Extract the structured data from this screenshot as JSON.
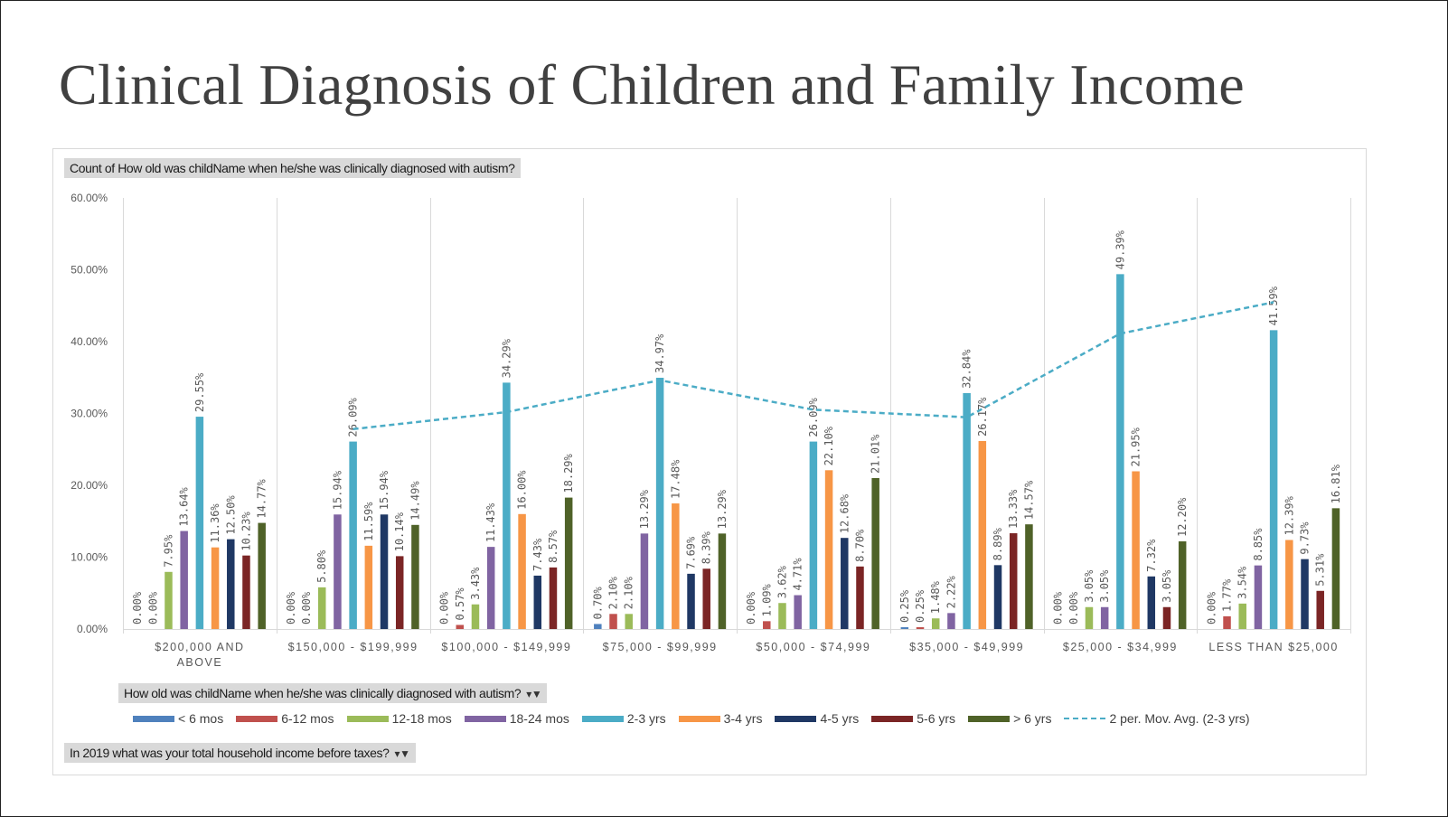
{
  "slide": {
    "title": "Clinical Diagnosis of Children and Family Income"
  },
  "pivot": {
    "values_field": "Count of How old was childName when he/she was clinically diagnosed with autism?",
    "legend_field": "How old was childName when he/she was clinically diagnosed with autism?",
    "axis_field": "In 2019 what was your total household income before taxes?"
  },
  "icons": {
    "filter": "filter-dropdown-icon"
  },
  "chart_data": {
    "type": "bar",
    "categories": [
      "$200,000 AND ABOVE",
      "$150,000 - $199,999",
      "$100,000 - $149,999",
      "$75,000 - $99,999",
      "$50,000 - $74,999",
      "$35,000 - $49,999",
      "$25,000 - $34,999",
      "LESS THAN $25,000"
    ],
    "ylim": [
      0,
      60
    ],
    "yticks": [
      "0.00%",
      "10.00%",
      "20.00%",
      "30.00%",
      "40.00%",
      "50.00%",
      "60.00%"
    ],
    "grid": "vertical category separators",
    "legend_position": "bottom",
    "series": [
      {
        "name": "< 6 mos",
        "color": "#4f81bd",
        "values": [
          0.0,
          0.0,
          0.0,
          0.7,
          0.0,
          0.25,
          0.0,
          0.0
        ],
        "labels": [
          "0.00%",
          "0.00%",
          "0.00%",
          "0.70%",
          "0.00%",
          "0.25%",
          "0.00%",
          "0.00%"
        ]
      },
      {
        "name": "6-12 mos",
        "color": "#c0504d",
        "values": [
          0.0,
          0.0,
          0.57,
          2.1,
          1.09,
          0.25,
          0.0,
          1.77
        ],
        "labels": [
          "0.00%",
          "0.00%",
          "0.57%",
          "2.10%",
          "1.09%",
          "0.25%",
          "0.00%",
          "1.77%"
        ]
      },
      {
        "name": "12-18 mos",
        "color": "#9bbb59",
        "values": [
          7.95,
          5.8,
          3.43,
          2.1,
          3.62,
          1.48,
          3.05,
          3.54
        ],
        "labels": [
          "7.95%",
          "5.80%",
          "3.43%",
          "2.10%",
          "3.62%",
          "1.48%",
          "3.05%",
          "3.54%"
        ]
      },
      {
        "name": "18-24 mos",
        "color": "#8064a2",
        "values": [
          13.64,
          15.94,
          11.43,
          13.29,
          4.71,
          2.22,
          3.05,
          8.85
        ],
        "labels": [
          "13.64%",
          "15.94%",
          "11.43%",
          "13.29%",
          "4.71%",
          "2.22%",
          "3.05%",
          "8.85%"
        ]
      },
      {
        "name": "2-3 yrs",
        "color": "#4bacc6",
        "values": [
          29.55,
          26.09,
          34.29,
          34.97,
          26.09,
          32.84,
          49.39,
          41.59
        ],
        "labels": [
          "29.55%",
          "26.09%",
          "34.29%",
          "34.97%",
          "26.09%",
          "32.84%",
          "49.39%",
          "41.59%"
        ]
      },
      {
        "name": "3-4 yrs",
        "color": "#f79646",
        "values": [
          11.36,
          11.59,
          16.0,
          17.48,
          22.1,
          26.17,
          21.95,
          12.39
        ],
        "labels": [
          "11.36%",
          "11.59%",
          "16.00%",
          "17.48%",
          "22.10%",
          "26.17%",
          "21.95%",
          "12.39%"
        ]
      },
      {
        "name": "4-5 yrs",
        "color": "#1f3864",
        "values": [
          12.5,
          15.94,
          7.43,
          7.69,
          12.68,
          8.89,
          7.32,
          9.73
        ],
        "labels": [
          "12.50%",
          "15.94%",
          "7.43%",
          "7.69%",
          "12.68%",
          "8.89%",
          "7.32%",
          "9.73%"
        ]
      },
      {
        "name": "5-6 yrs",
        "color": "#7b2525",
        "values": [
          10.23,
          10.14,
          8.57,
          8.39,
          8.7,
          13.33,
          3.05,
          5.31
        ],
        "labels": [
          "10.23%",
          "10.14%",
          "8.57%",
          "8.39%",
          "8.70%",
          "13.33%",
          "3.05%",
          "5.31%"
        ]
      },
      {
        "name": "> 6 yrs",
        "color": "#4f6228",
        "values": [
          14.77,
          14.49,
          18.29,
          13.29,
          21.01,
          14.57,
          12.2,
          16.81
        ],
        "labels": [
          "14.77%",
          "14.49%",
          "18.29%",
          "13.29%",
          "21.01%",
          "14.57%",
          "12.20%",
          "16.81%"
        ]
      }
    ],
    "trendline": {
      "name": "2 per. Mov. Avg. (2-3 yrs)",
      "color": "#4bacc6",
      "style": "dashed",
      "values": [
        null,
        27.82,
        30.19,
        34.63,
        30.53,
        29.47,
        41.12,
        45.49
      ]
    }
  }
}
